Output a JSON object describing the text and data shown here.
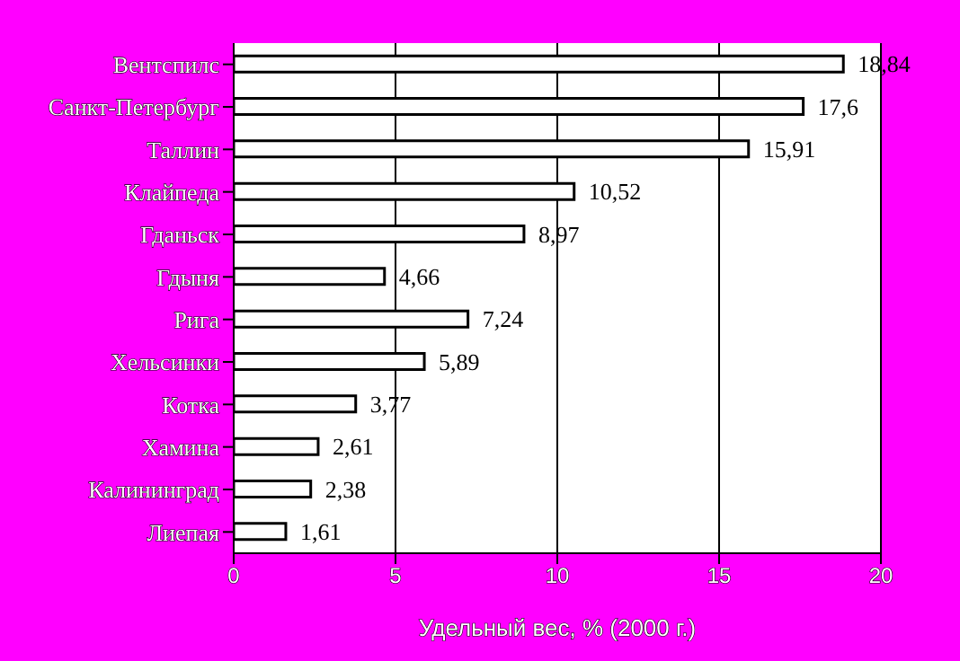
{
  "chart_data": {
    "type": "bar",
    "orientation": "horizontal",
    "xlabel": "Удельный вес, % (2000 г.)",
    "categories": [
      "Вентспилс",
      "Санкт-Петербург",
      "Таллин",
      "Клайпеда",
      "Гданьск",
      "Гдыня",
      "Рига",
      "Хельсинки",
      "Котка",
      "Хамина",
      "Калининград",
      "Лиепая"
    ],
    "values": [
      18.84,
      17.6,
      15.91,
      10.52,
      8.97,
      4.66,
      7.24,
      5.89,
      3.77,
      2.61,
      2.38,
      1.61
    ],
    "value_labels": [
      "18,84",
      "17,6",
      "15,91",
      "10,52",
      "8,97",
      "4,66",
      "7,24",
      "5,89",
      "3,77",
      "2,61",
      "2,38",
      "1,61"
    ],
    "color": "#ffffff",
    "xlim": [
      0,
      20
    ],
    "xticks": [
      0,
      5,
      10,
      15,
      20
    ],
    "grid": "x"
  }
}
